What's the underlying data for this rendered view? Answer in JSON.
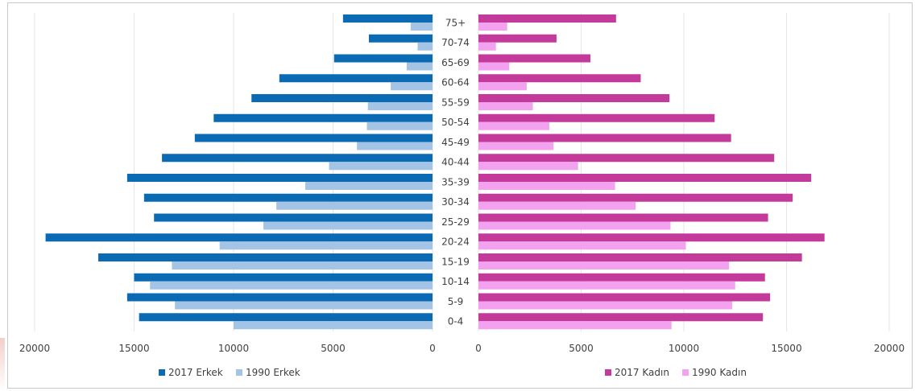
{
  "chart_data": {
    "type": "bar",
    "orientation": "horizontal",
    "layout": "population-pyramid",
    "categories": [
      "0-4",
      "5-9",
      "10-14",
      "15-19",
      "20-24",
      "25-29",
      "30-34",
      "35-39",
      "40-44",
      "45-49",
      "50-54",
      "55-59",
      "60-64",
      "65-69",
      "70-74",
      "75+"
    ],
    "left_panel": {
      "xlim": [
        0,
        20000
      ],
      "reversed": true,
      "ticks": [
        "20000",
        "15000",
        "10000",
        "5000",
        "0"
      ],
      "series": [
        {
          "name": "2017 Erkek",
          "color": "#0a6ab4",
          "values": [
            14750,
            15350,
            15000,
            16800,
            19450,
            14000,
            14500,
            15350,
            13600,
            11950,
            11000,
            9100,
            7700,
            4950,
            3200,
            4500
          ]
        },
        {
          "name": "1990 Erkek",
          "color": "#a3c4e4",
          "values": [
            10000,
            12950,
            14200,
            13100,
            10700,
            8500,
            7850,
            6400,
            5200,
            3800,
            3300,
            3250,
            2100,
            1300,
            750,
            1100
          ]
        }
      ]
    },
    "right_panel": {
      "xlim": [
        0,
        20000
      ],
      "reversed": false,
      "ticks": [
        "0",
        "5000",
        "10000",
        "15000",
        "20000"
      ],
      "series": [
        {
          "name": "2017 Kadın",
          "color": "#c43a9a",
          "values": [
            13850,
            14200,
            13950,
            15750,
            16850,
            14100,
            15300,
            16200,
            14400,
            12300,
            11500,
            9300,
            7900,
            5450,
            3800,
            6700
          ]
        },
        {
          "name": "1990 Kadın",
          "color": "#f3a2ef",
          "values": [
            9400,
            12350,
            12500,
            12200,
            10100,
            9350,
            7650,
            6650,
            4850,
            3650,
            3450,
            2650,
            2350,
            1500,
            850,
            1400
          ]
        }
      ]
    },
    "grid": true,
    "legend_position": "bottom"
  }
}
